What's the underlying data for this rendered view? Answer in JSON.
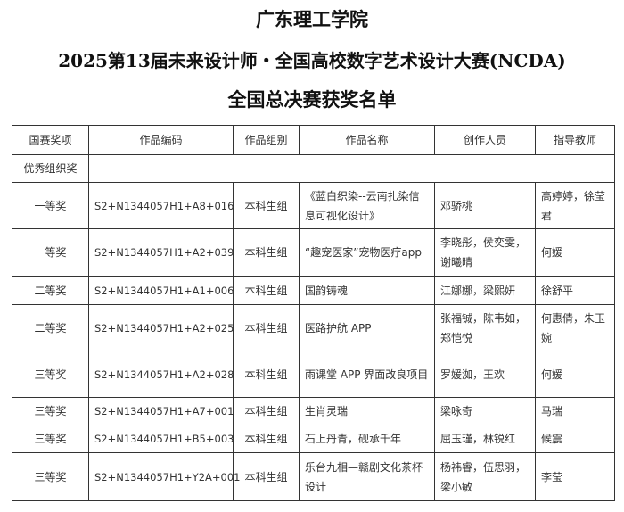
{
  "title": {
    "line1": "广东理工学院",
    "line2": "2025第13届未来设计师・全国高校数字艺术设计大赛(NCDA)",
    "line3": "全国总决赛获奖名单"
  },
  "table": {
    "headers": [
      "国赛奖项",
      "作品编码",
      "作品组别",
      "作品名称",
      "创作人员",
      "指导教师"
    ],
    "org_award": "优秀组织奖",
    "rows": [
      [
        "一等奖",
        "S2+N1344057H1+A8+016",
        "本科生组",
        "《蓝白织染--云南扎染信息可视化设计》",
        "邓骄桃",
        "高婷婷，徐莹君"
      ],
      [
        "一等奖",
        "S2+N1344057H1+A2+039",
        "本科生组",
        "“趣宠医家”宠物医疗app",
        "李晓彤，侯奕雯，谢曦晴",
        "何媛"
      ],
      [
        "二等奖",
        "S2+N1344057H1+A1+006",
        "本科生组",
        "国韵铸魂",
        "江娜娜，梁熙妍",
        "徐舒平"
      ],
      [
        "二等奖",
        "S2+N1344057H1+A2+025",
        "本科生组",
        "医路护航 APP",
        "张福铖，陈韦如，郑恺悦",
        "何惠倩，朱玉婉"
      ],
      [
        "三等奖",
        "S2+N1344057H1+A2+028",
        "本科生组",
        "雨课堂 APP 界面改良项目",
        "罗媛洳，王欢",
        "何媛"
      ],
      [
        "三等奖",
        "S2+N1344057H1+A7+001",
        "本科生组",
        "生肖灵瑞",
        "梁咏奇",
        "马瑞"
      ],
      [
        "三等奖",
        "S2+N1344057H1+B5+003",
        "本科生组",
        "石上丹青，砚承千年",
        "屈玉瑾，林锐红",
        "候震"
      ],
      [
        "三等奖",
        "S2+N1344057H1+Y2A+001",
        "本科生组",
        "乐台九相—赣剧文化茶杯设计",
        "杨祎睿，伍思羽，梁小敏",
        "李莹"
      ]
    ]
  }
}
